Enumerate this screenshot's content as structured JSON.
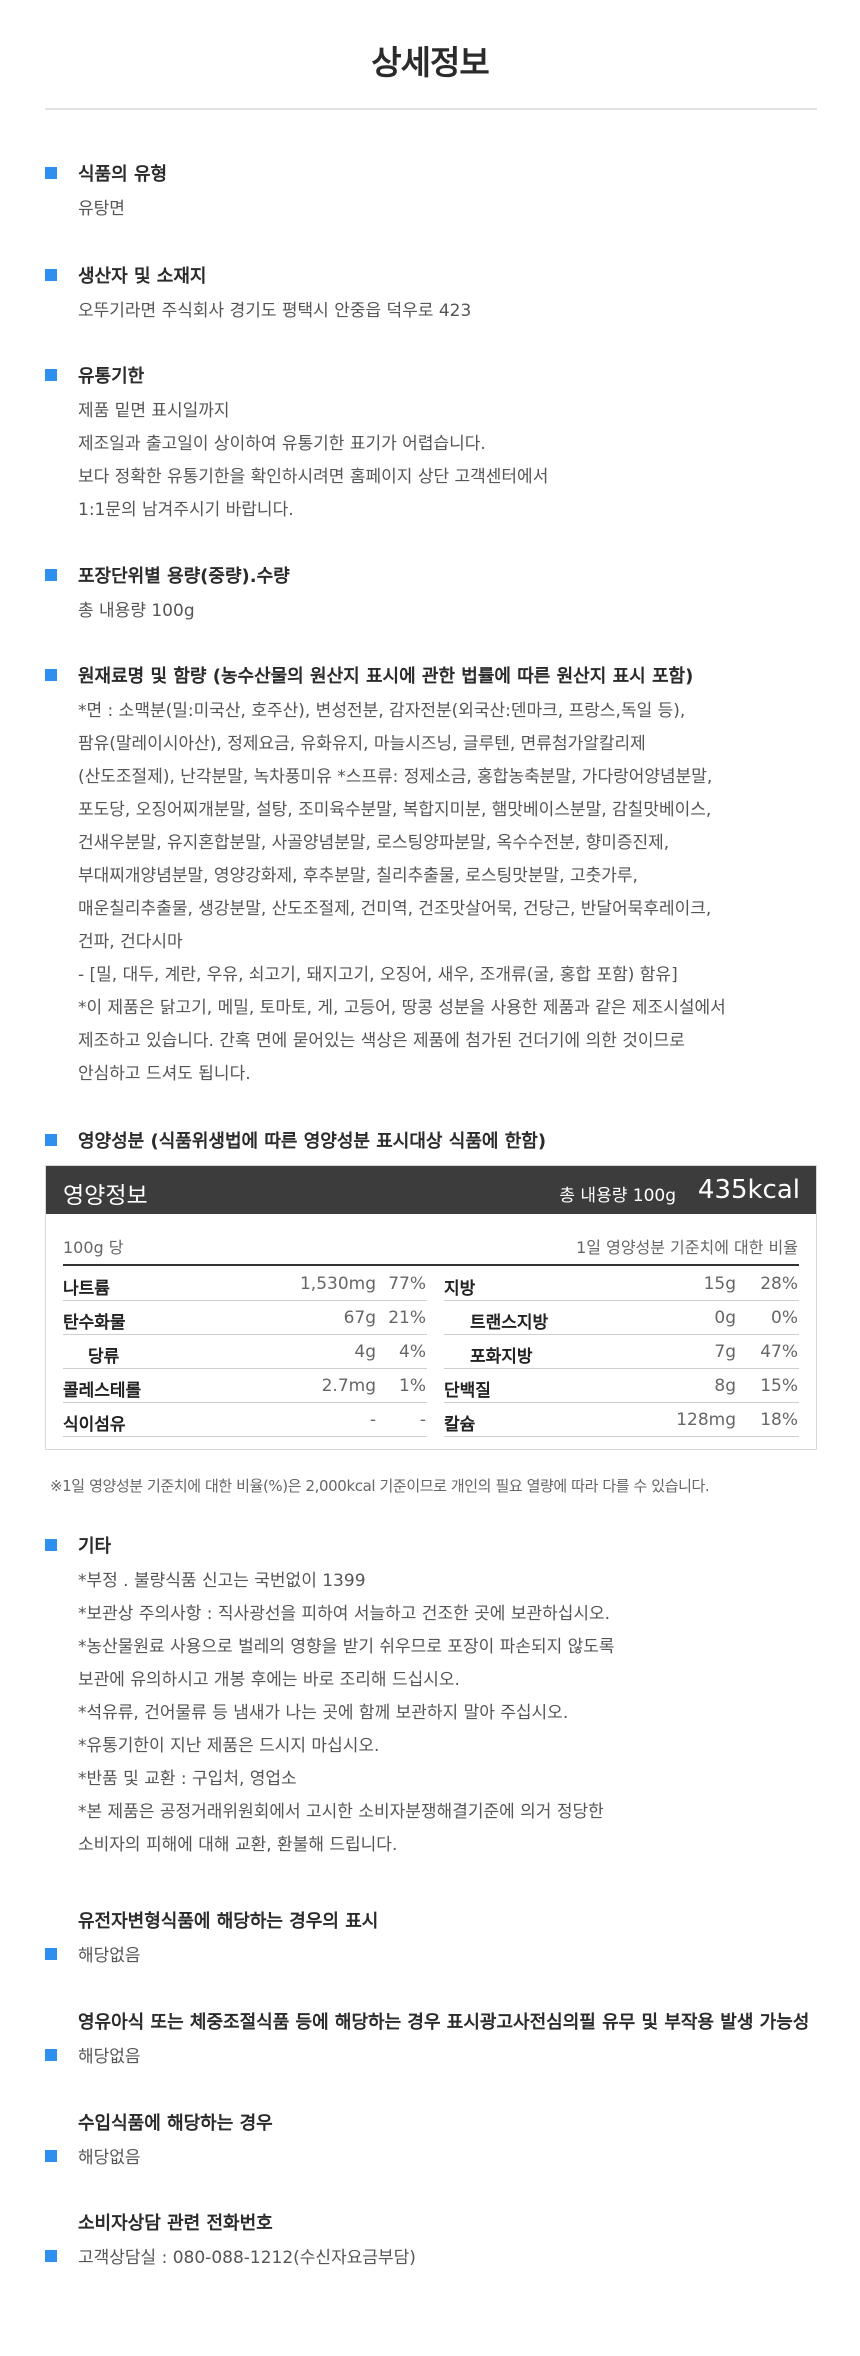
{
  "page": {
    "title": "상세정보"
  },
  "sections": {
    "type": {
      "heading": "식품의 유형",
      "lines": [
        "유탕면"
      ]
    },
    "producer": {
      "heading": "생산자 및 소재지",
      "lines": [
        "오뚜기라면 주식회사 경기도 평택시 안중읍 덕우로 423"
      ]
    },
    "expiry": {
      "heading": "유통기한",
      "lines": [
        "제품 밑면 표시일까지",
        "제조일과 출고일이 상이하여 유통기한 표기가 어렵습니다.",
        "보다 정확한 유통기한을 확인하시려면 홈페이지 상단 고객센터에서",
        "1:1문의 남겨주시기 바랍니다."
      ]
    },
    "package": {
      "heading": "포장단위별 용량(중량).수량",
      "lines": [
        "총 내용량 100g"
      ]
    },
    "ingredients": {
      "heading": "원재료명 및 함량 (농수산물의 원산지 표시에 관한 법률에 따른 원산지 표시 포함)",
      "lines": [
        "*면 : 소맥분(밀:미국산, 호주산), 변성전분, 감자전분(외국산:덴마크, 프랑스,독일 등),",
        "팜유(말레이시아산), 정제요금, 유화유지, 마늘시즈닝, 글루텐, 면류첨가알칼리제",
        "(산도조절제), 난각분말, 녹차풍미유 *스프류: 정제소금, 홍합농축분말, 가다랑어양념분말,",
        "포도당, 오징어찌개분말, 설탕, 조미육수분말, 복합지미분, 햄맛베이스분말, 감칠맛베이스,",
        "건새우분말, 유지혼합분말, 사골양념분말, 로스팅양파분말, 옥수수전분, 향미증진제,",
        "부대찌개양념분말, 영양강화제, 후추분말, 칠리추출물, 로스팅맛분말, 고춧가루,",
        " 매운칠리추출물, 생강분말, 산도조절제, 건미역, 건조맛살어묵, 건당근, 반달어묵후레이크,",
        "건파, 건다시마",
        "- [밀, 대두, 계란, 우유, 쇠고기, 돼지고기, 오징어, 새우, 조개류(굴, 홍합 포함) 함유]",
        "*이 제품은 닭고기, 메밀, 토마토, 게, 고등어, 땅콩 성분을 사용한 제품과 같은 제조시설에서",
        "제조하고 있습니다. 간혹 면에 묻어있는 색상은 제품에 첨가된 건더기에 의한 것이므로",
        "안심하고 드셔도 됩니다."
      ]
    },
    "nutrition": {
      "heading": "영양성분 (식품위생법에 따른 영양성분 표시대상 식품에 한함)"
    },
    "etc": {
      "heading": "기타",
      "lines": [
        "*부정 . 불량식품 신고는 국번없이 1399",
        "*보관상 주의사항 : 직사광선을 피하여 서늘하고 건조한 곳에 보관하십시오.",
        "*농산물원료 사용으로 벌레의 영향을 받기 쉬우므로 포장이 파손되지 않도록",
        "보관에 유의하시고 개봉 후에는 바로 조리해 드십시오.",
        "*석유류, 건어물류 등 냄새가 나는 곳에 함께 보관하지 말아 주십시오.",
        "*유통기한이 지난 제품은 드시지 마십시오.",
        "*반품 및 교환 : 구입처, 영업소",
        "*본 제품은 공정거래위원회에서 고시한 소비자분쟁해결기준에 의거 정당한",
        "소비자의 피해에 대해 교환, 환불해 드립니다."
      ]
    },
    "gmo": {
      "heading": "유전자변형식품에 해당하는 경우의 표시",
      "value": "해당없음"
    },
    "infant": {
      "heading": "영유아식 또는 체중조절식품 등에 해당하는 경우 표시광고사전심의필 유무 및 부작용 발생 가능성",
      "value": "해당없음"
    },
    "imported": {
      "heading": "수입식품에 해당하는 경우",
      "value": "해당없음"
    },
    "consumer": {
      "heading": "소비자상담 관련 전화번호",
      "value": "고객상담실 : 080-088-1212(수신자요금부담)"
    }
  },
  "nutrition_table": {
    "title": "영양정보",
    "total_amount": "총 내용량 100g",
    "kcal": "435kcal",
    "per": "100g 당",
    "daily_ratio_label": "1일 영양성분 기준치에 대한 비율",
    "left_rows": [
      {
        "name": "나트륨",
        "value": "1,530mg",
        "pct": "77%"
      },
      {
        "name": "탄수화물",
        "value": "67g",
        "pct": "21%"
      },
      {
        "name": "당류",
        "value": "4g",
        "pct": "4%"
      },
      {
        "name": "콜레스테롤",
        "value": "2.7mg",
        "pct": "1%"
      },
      {
        "name": "식이섬유",
        "value": "-",
        "pct": "-"
      }
    ],
    "right_rows": [
      {
        "name": "지방",
        "value": "15g",
        "pct": "28%"
      },
      {
        "name": "트랜스지방",
        "value": "0g",
        "pct": "0%"
      },
      {
        "name": "포화지방",
        "value": "7g",
        "pct": "47%"
      },
      {
        "name": "단백질",
        "value": "8g",
        "pct": "15%"
      },
      {
        "name": "칼슘",
        "value": "128mg",
        "pct": "18%"
      }
    ],
    "footnote": "※1일 영양성분 기준치에 대한 비율(%)은 2,000kcal 기준이므로 개인의 필요 열량에 따라 다를 수 있습니다."
  },
  "colors": {
    "accent": "#2e8ff0",
    "header_bg": "#3c3c3c"
  }
}
